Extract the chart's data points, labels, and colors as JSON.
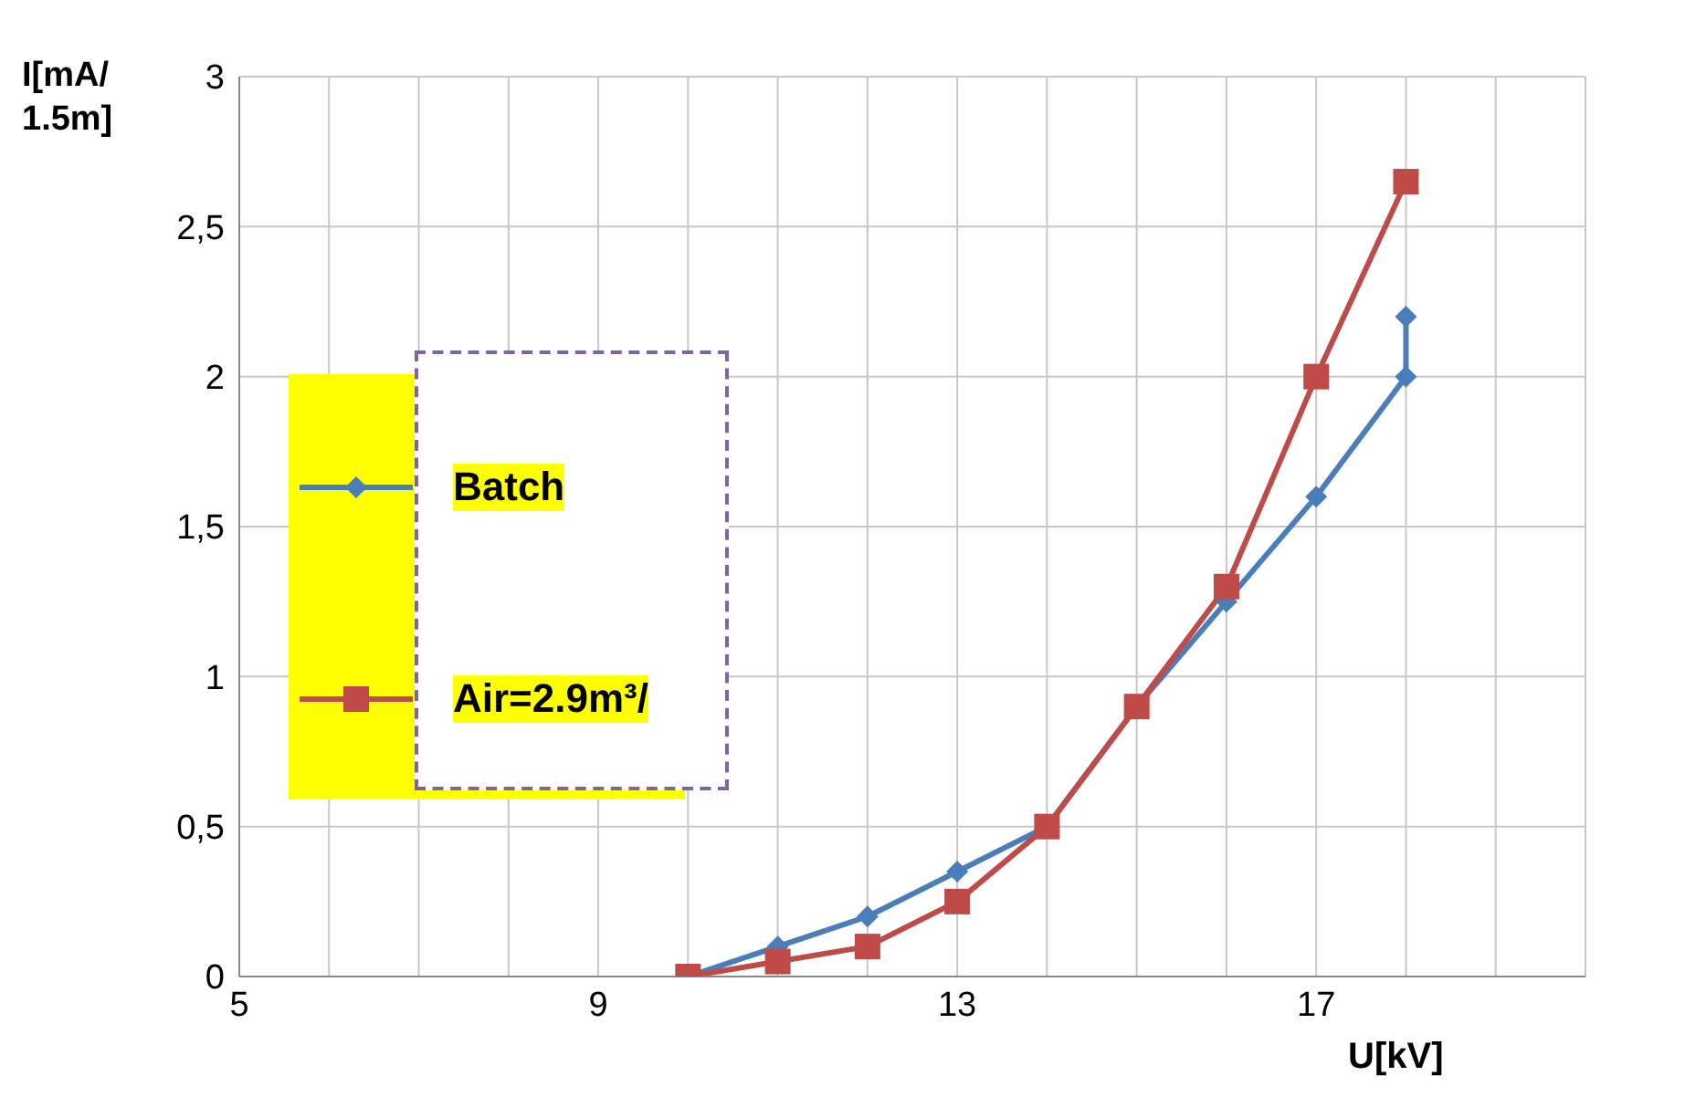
{
  "chart_data": {
    "type": "line",
    "xlabel": "U[kV]",
    "ylabel": "I[mA/ 1.5m]",
    "xlim": [
      5,
      20
    ],
    "xticks": [
      5,
      {
        "value": 6,
        "label": null
      },
      {
        "value": 7,
        "label": null
      },
      {
        "value": 8,
        "label": null
      },
      9,
      {
        "value": 10,
        "label": null
      },
      {
        "value": 11,
        "label": null
      },
      {
        "value": 12,
        "label": null
      },
      13,
      {
        "value": 14,
        "label": null
      },
      {
        "value": 15,
        "label": null
      },
      {
        "value": 16,
        "label": null
      },
      17,
      {
        "value": 18,
        "label": null
      },
      {
        "value": 19,
        "label": null
      },
      {
        "value": 20,
        "label": null
      }
    ],
    "ylim": [
      0,
      3
    ],
    "yticks": [
      0,
      {
        "value": 0.5,
        "label": "0,5"
      },
      1,
      {
        "value": 1.5,
        "label": "1,5"
      },
      2,
      {
        "value": 2.5,
        "label": "2,5"
      },
      3
    ],
    "grid": true,
    "legend": "left",
    "line_style": "solid",
    "series": [
      {
        "name": "Batch",
        "color": "#4a7ebb",
        "marker": "diamond",
        "x": [
          10,
          11,
          12,
          13,
          14,
          15,
          16,
          17,
          18,
          18
        ],
        "values": [
          0,
          0.1,
          0.2,
          0.35,
          0.5,
          0.9,
          1.25,
          1.6,
          2.0,
          2.2
        ]
      },
      {
        "name": "Air=2.9m³/",
        "color": "#be4b48",
        "marker": "square",
        "x": [
          10,
          11,
          12,
          13,
          14,
          15,
          16,
          17,
          18
        ],
        "values": [
          0,
          0.05,
          0.1,
          0.25,
          0.5,
          0.9,
          1.3,
          2.0,
          2.65
        ]
      }
    ]
  }
}
